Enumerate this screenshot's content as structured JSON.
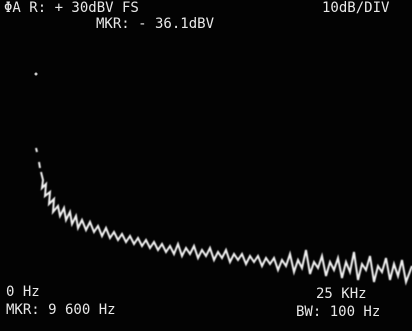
{
  "screen": {
    "header": {
      "range": "ΦA R: + 30dBV FS",
      "scale": "10dB/DIV",
      "marker_level": "MKR: - 36.1dBV"
    },
    "footer": {
      "start": "0 Hz",
      "marker_freq": "MKR: 9 600 Hz",
      "stop": "25 KHz",
      "bandwidth": "BW: 100 Hz"
    }
  }
}
